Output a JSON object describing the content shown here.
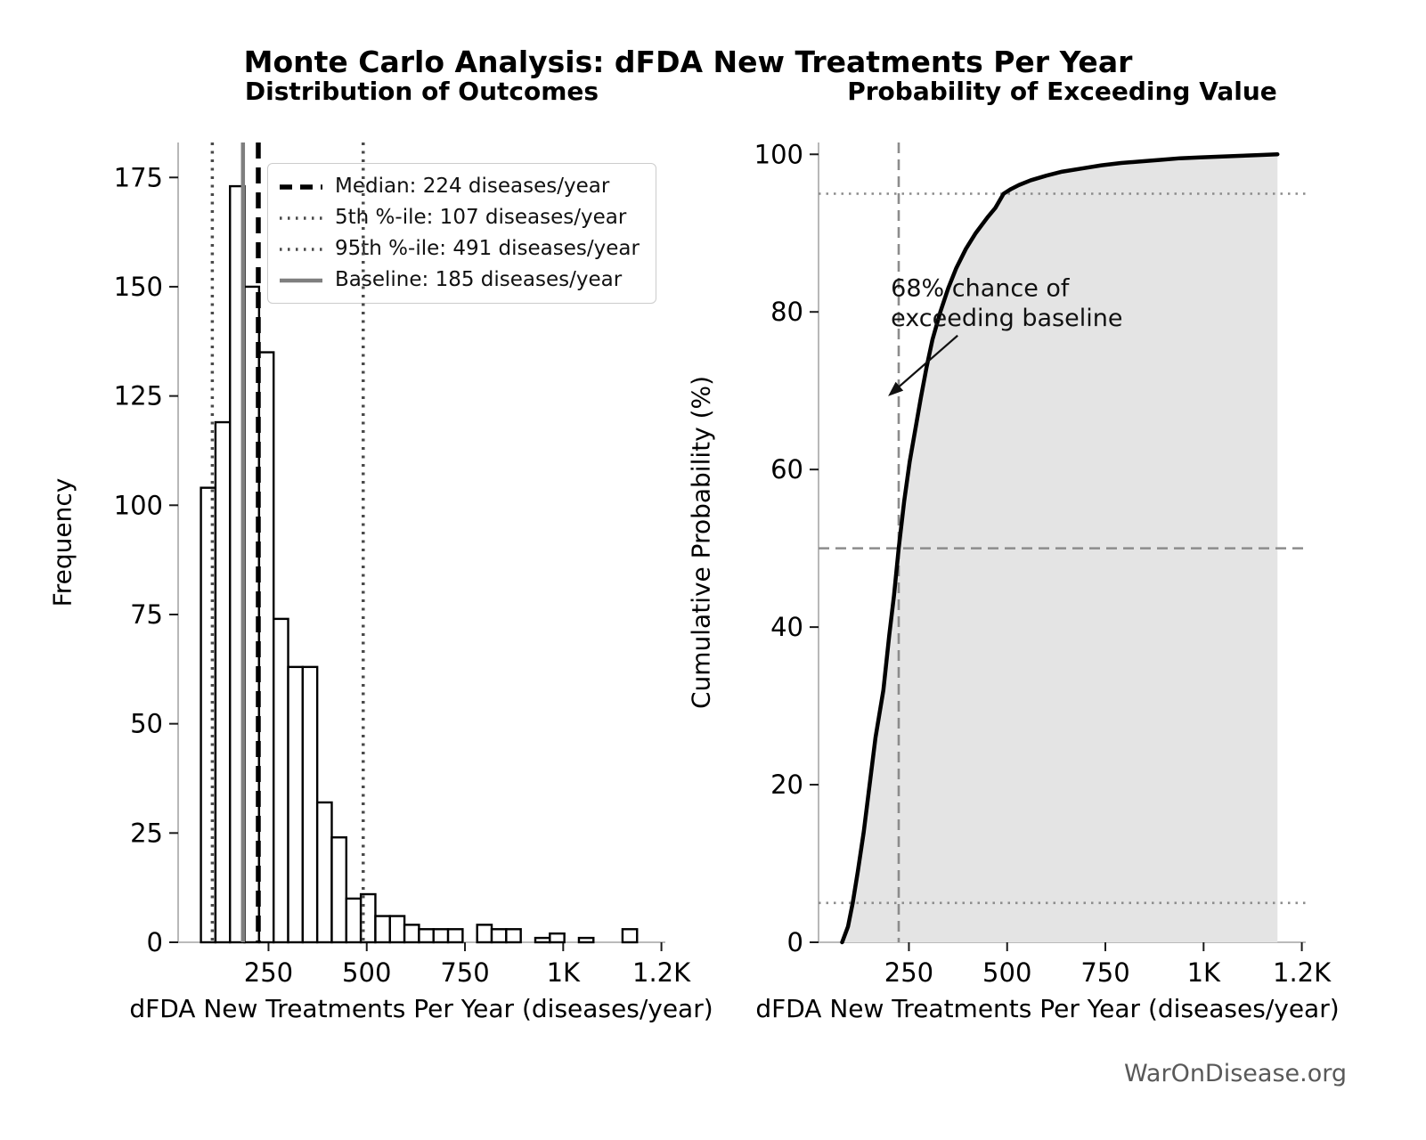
{
  "page": {
    "title": "Monte Carlo Analysis: dFDA New Treatments Per Year",
    "watermark": "WarOnDisease.org"
  },
  "colors": {
    "background": "#ffffff",
    "bar_fill": "#ffffff",
    "bar_edge": "#000000",
    "spine": "#b0b0b0",
    "tick": "#1a1a1a",
    "cdf_line": "#000000",
    "cdf_fill": "#e4e4e4",
    "guide_gray": "#8c8c8c",
    "percentile_line": "#4a4a4a",
    "baseline_line": "#7f7f7f",
    "median_line": "#000000",
    "watermark_gray": "#595959"
  },
  "chart_data": [
    {
      "type": "bar",
      "title": "Distribution of Outcomes",
      "xlabel": "dFDA New Treatments Per Year (diseases/year)",
      "ylabel": "Frequency",
      "bins": {
        "start": 78,
        "width": 37
      },
      "counts": [
        104,
        119,
        173,
        150,
        135,
        74,
        63,
        63,
        32,
        24,
        10,
        11,
        6,
        6,
        4,
        3,
        3,
        3,
        0,
        4,
        3,
        3,
        0,
        1,
        2,
        0,
        1,
        0,
        0,
        3
      ],
      "xlim": [
        20,
        1260
      ],
      "ylim": [
        0,
        183
      ],
      "xticks": {
        "values": [
          250,
          500,
          750,
          1000,
          1250
        ],
        "labels": [
          "250",
          "500",
          "750",
          "1K",
          "1.2K"
        ]
      },
      "yticks": [
        0,
        25,
        50,
        75,
        100,
        125,
        150,
        175
      ],
      "grid": false,
      "legend_position": "upper-left",
      "vlines": [
        {
          "x": 224,
          "label": "Median: 224 diseases/year",
          "style": "dashed-thick",
          "color": "#000000"
        },
        {
          "x": 107,
          "label": "5th %-ile: 107 diseases/year",
          "style": "dotted",
          "color": "#4a4a4a"
        },
        {
          "x": 491,
          "label": "95th %-ile: 491 diseases/year",
          "style": "dotted",
          "color": "#4a4a4a"
        },
        {
          "x": 185,
          "label": "Baseline: 185 diseases/year",
          "style": "solid",
          "color": "#7f7f7f"
        }
      ]
    },
    {
      "type": "line",
      "title": "Probability of Exceeding Value",
      "xlabel": "dFDA New Treatments Per Year (diseases/year)",
      "ylabel": "Cumulative Probability (%)",
      "x": [
        80,
        95,
        107,
        120,
        135,
        150,
        165,
        185,
        200,
        212,
        224,
        238,
        252,
        266,
        280,
        295,
        310,
        330,
        350,
        370,
        395,
        420,
        450,
        470,
        491,
        510,
        530,
        560,
        600,
        640,
        690,
        740,
        790,
        840,
        890,
        940,
        990,
        1040,
        1090,
        1140,
        1188
      ],
      "y": [
        0,
        2,
        5,
        9,
        14,
        20,
        26,
        32,
        39,
        44,
        50,
        56,
        61,
        65,
        69,
        73,
        76.5,
        80,
        83,
        85.5,
        88,
        90,
        92,
        93.2,
        95,
        95.6,
        96.1,
        96.7,
        97.3,
        97.8,
        98.2,
        98.6,
        98.9,
        99.1,
        99.3,
        99.5,
        99.6,
        99.7,
        99.8,
        99.9,
        100
      ],
      "fill_under_curve": true,
      "xlim": [
        20,
        1260
      ],
      "ylim": [
        0,
        101.5
      ],
      "xticks": {
        "values": [
          250,
          500,
          750,
          1000,
          1250
        ],
        "labels": [
          "250",
          "500",
          "750",
          "1K",
          "1.2K"
        ]
      },
      "yticks": [
        0,
        20,
        40,
        60,
        80,
        100
      ],
      "grid": false,
      "hlines": [
        {
          "y": 50,
          "style": "dashed"
        },
        {
          "y": 95,
          "style": "dotted"
        },
        {
          "y": 5,
          "style": "dotted"
        }
      ],
      "vlines": [
        {
          "x": 224,
          "style": "dashed"
        }
      ],
      "annotation": {
        "lines": [
          "68% chance of",
          "exceeding baseline"
        ],
        "text_x": 204,
        "text_y": [
          82,
          78.2
        ],
        "arrow_from": [
          374,
          77
        ],
        "arrow_to": [
          197,
          69.3
        ]
      }
    }
  ]
}
